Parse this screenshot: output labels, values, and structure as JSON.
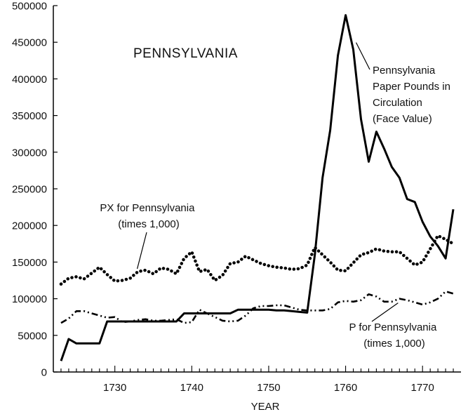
{
  "chart_data": {
    "type": "line",
    "title": "PENNSYLVANIA",
    "xlabel": "YEAR",
    "ylabel": "",
    "xlim": [
      1722,
      1775
    ],
    "ylim": [
      0,
      500000
    ],
    "x_ticks": [
      1730,
      1740,
      1750,
      1760,
      1770
    ],
    "y_ticks": [
      0,
      50000,
      100000,
      150000,
      200000,
      250000,
      300000,
      350000,
      400000,
      450000,
      500000
    ],
    "grid": false,
    "legend": "none",
    "series": [
      {
        "name": "Pennsylvania Paper Pounds in Circulation (Face Value)",
        "label_lines": [
          "Pennsylvania",
          "Paper Pounds in",
          "Circulation",
          "(Face Value)"
        ],
        "style": "solid",
        "color": "#000000",
        "x": [
          1723,
          1724,
          1725,
          1726,
          1727,
          1728,
          1729,
          1730,
          1731,
          1732,
          1733,
          1734,
          1735,
          1736,
          1737,
          1738,
          1739,
          1740,
          1741,
          1742,
          1743,
          1744,
          1745,
          1746,
          1747,
          1748,
          1749,
          1750,
          1751,
          1752,
          1753,
          1754,
          1755,
          1756,
          1757,
          1758,
          1759,
          1760,
          1761,
          1762,
          1763,
          1764,
          1765,
          1766,
          1767,
          1768,
          1769,
          1770,
          1771,
          1772,
          1773,
          1774
        ],
        "y": [
          15000,
          45000,
          39000,
          39000,
          39000,
          39000,
          69000,
          69000,
          69000,
          69000,
          69000,
          69000,
          69000,
          69000,
          69000,
          69000,
          80000,
          80000,
          80000,
          80000,
          80000,
          80000,
          80000,
          85000,
          85000,
          85000,
          85000,
          85000,
          84000,
          84000,
          83000,
          82000,
          81000,
          160000,
          265000,
          330000,
          432000,
          487000,
          440000,
          345000,
          287000,
          328000,
          305000,
          280000,
          265000,
          236000,
          232000,
          205000,
          185000,
          172000,
          155000,
          222000
        ]
      },
      {
        "name": "PX for Pennsylvania (times 1,000)",
        "label_lines": [
          "PX for Pennsylvania",
          "(times 1,000)"
        ],
        "style": "dotted",
        "color": "#000000",
        "x": [
          1723,
          1724,
          1725,
          1726,
          1727,
          1728,
          1729,
          1730,
          1731,
          1732,
          1733,
          1734,
          1735,
          1736,
          1737,
          1738,
          1739,
          1740,
          1741,
          1742,
          1743,
          1744,
          1745,
          1746,
          1747,
          1748,
          1749,
          1750,
          1751,
          1752,
          1753,
          1754,
          1755,
          1756,
          1757,
          1758,
          1759,
          1760,
          1761,
          1762,
          1763,
          1764,
          1765,
          1766,
          1767,
          1768,
          1769,
          1770,
          1771,
          1772,
          1773,
          1774
        ],
        "y": [
          120000,
          128000,
          130000,
          127000,
          135000,
          143000,
          133000,
          124000,
          125000,
          128000,
          137000,
          139000,
          134000,
          142000,
          140000,
          134000,
          155000,
          164000,
          137000,
          140000,
          125000,
          132000,
          148000,
          150000,
          158000,
          153000,
          148000,
          145000,
          143000,
          142000,
          140000,
          141000,
          146000,
          170000,
          160000,
          150000,
          139000,
          138000,
          149000,
          160000,
          163000,
          168000,
          165000,
          164000,
          164000,
          155000,
          146000,
          150000,
          168000,
          186000,
          181000,
          175000
        ]
      },
      {
        "name": "P for Pennsylvania (times 1,000)",
        "label_lines": [
          "P for Pennsylvania",
          "(times 1,000)"
        ],
        "style": "dash-dot",
        "color": "#000000",
        "x": [
          1723,
          1724,
          1725,
          1726,
          1727,
          1728,
          1729,
          1730,
          1731,
          1732,
          1733,
          1734,
          1735,
          1736,
          1737,
          1738,
          1739,
          1740,
          1741,
          1742,
          1743,
          1744,
          1745,
          1746,
          1747,
          1748,
          1749,
          1750,
          1751,
          1752,
          1753,
          1754,
          1755,
          1756,
          1757,
          1758,
          1759,
          1760,
          1761,
          1762,
          1763,
          1764,
          1765,
          1766,
          1767,
          1768,
          1769,
          1770,
          1771,
          1772,
          1773,
          1774
        ],
        "y": [
          67000,
          73000,
          83000,
          83000,
          80000,
          77000,
          74000,
          75000,
          68000,
          69000,
          71000,
          72000,
          70000,
          70000,
          71000,
          72000,
          67000,
          68000,
          85000,
          80000,
          75000,
          70000,
          69000,
          70000,
          77000,
          87000,
          90000,
          90000,
          91000,
          91000,
          88000,
          85000,
          84000,
          84000,
          84000,
          86000,
          95000,
          97000,
          96000,
          98000,
          106000,
          103000,
          96000,
          96000,
          100000,
          98000,
          95000,
          92000,
          95000,
          100000,
          110000,
          107000
        ]
      }
    ]
  }
}
